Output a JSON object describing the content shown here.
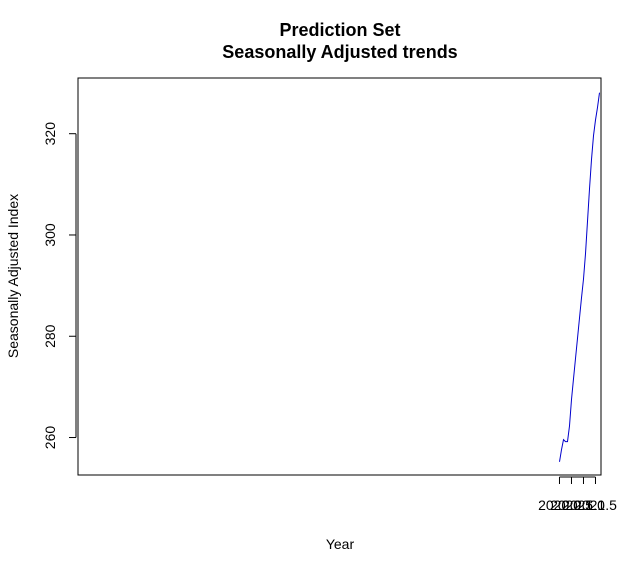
{
  "chart_data": {
    "type": "line",
    "title": "Prediction Set",
    "subtitle": "Seasonally Adjusted trends",
    "xlabel": "Year",
    "ylabel": "Seasonally Adjusted Index",
    "xlim": [
      1999.94,
      2021.73
    ],
    "ylim": [
      252.6,
      331.0
    ],
    "xticks": [
      2020.0,
      2020.5,
      2021.0,
      2021.5
    ],
    "xtick_labels": [
      "2020.0",
      "2020.5",
      "2021.0",
      "2021.5"
    ],
    "yticks": [
      260,
      280,
      300,
      320
    ],
    "ytick_labels": [
      "260",
      "280",
      "300",
      "320"
    ],
    "grid": false,
    "series": [
      {
        "color": "#0000cc",
        "x": [
          2020.0,
          2020.0833,
          2020.1667,
          2020.25,
          2020.3333,
          2020.4167,
          2020.5,
          2020.5833,
          2020.6667,
          2020.75,
          2020.8333,
          2020.9167,
          2021.0,
          2021.0833,
          2021.1667,
          2021.25,
          2021.3333,
          2021.4167,
          2021.5,
          2021.5833,
          2021.6667
        ],
        "y": [
          255.2,
          257.6,
          259.6,
          259.2,
          259.2,
          262.3,
          267.5,
          271.6,
          275.6,
          279.6,
          283.6,
          287.6,
          291.3,
          296.3,
          302.7,
          309.1,
          314.9,
          319.6,
          322.7,
          325.2,
          328.1
        ]
      }
    ]
  }
}
